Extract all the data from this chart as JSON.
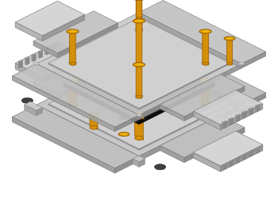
{
  "bg_color": "#ffffff",
  "plate_top": "#c8c8c8",
  "plate_side_l": "#b0b0b0",
  "plate_side_r": "#989898",
  "plate_ec": "#808080",
  "board_top": "#252525",
  "board_side_l": "#1a1a1a",
  "board_side_r": "#111111",
  "board_ec": "#050505",
  "sensor_top": "#333333",
  "sensor_side": "#222222",
  "gold_body": "#d4900a",
  "gold_top": "#e8aa00",
  "gold_dark": "#a06000",
  "rubber": "#404040",
  "connector_top": "#7a7a7a",
  "connector_side": "#555555",
  "fig_width": 3.5,
  "fig_height": 2.77,
  "dpi": 100
}
